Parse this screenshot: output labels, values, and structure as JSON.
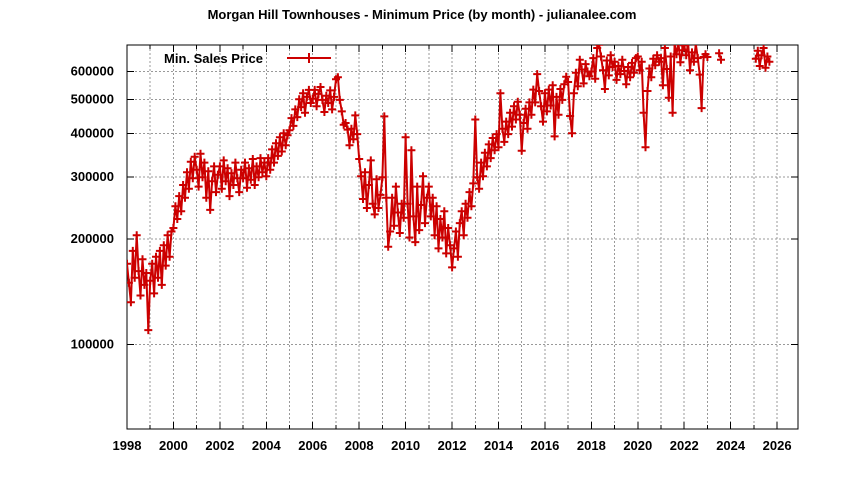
{
  "title": "Morgan Hill Townhouses - Minimum Price (by month) - julianalee.com",
  "legend": {
    "label": "Min. Sales Price"
  },
  "colors": {
    "series": "#cc0000",
    "grid": "#999999",
    "axis": "#000000",
    "background": "#ffffff",
    "text": "#000000"
  },
  "chart_data": {
    "type": "line",
    "title": "Morgan Hill Townhouses - Minimum Price (by month) - julianalee.com",
    "xlabel": "",
    "ylabel": "",
    "legend_entries": [
      "Min. Sales Price"
    ],
    "legend_position": "top-left-inside",
    "marker": "plus",
    "grid": true,
    "x_axis": {
      "min": 1998,
      "max": 2026.9,
      "tick_labels": [
        1998,
        2000,
        2002,
        2004,
        2006,
        2008,
        2010,
        2012,
        2014,
        2016,
        2018,
        2020,
        2022,
        2024,
        2026
      ],
      "minor_tick_interval": 1
    },
    "y_axis": {
      "scale": "log",
      "min": 57500,
      "max": 714000,
      "tick_labels": [
        100000,
        200000,
        300000,
        400000,
        500000,
        600000
      ]
    },
    "series": [
      {
        "name": "Min. Sales Price",
        "start_month": "1998-01",
        "frequency": "monthly",
        "monthly_values": [
          170000,
          150000,
          132000,
          185000,
          155000,
          205000,
          162000,
          138000,
          175000,
          148000,
          160000,
          110000,
          152000,
          170000,
          140000,
          178000,
          155000,
          185000,
          148000,
          192000,
          168000,
          205000,
          178000,
          210000,
          215000,
          248000,
          228000,
          265000,
          240000,
          285000,
          262000,
          310000,
          278000,
          332000,
          298000,
          343000,
          315000,
          282000,
          350000,
          300000,
          330000,
          262000,
          312000,
          242000,
          292000,
          322000,
          272000,
          305000,
          322000,
          278000,
          335000,
          292000,
          318000,
          265000,
          308000,
          285000,
          330000,
          298000,
          272000,
          315000,
          298000,
          330000,
          280000,
          318000,
          295000,
          338000,
          285000,
          322000,
          300000,
          340000,
          310000,
          330000,
          302000,
          340000,
          315000,
          360000,
          330000,
          375000,
          345000,
          390000,
          355000,
          400000,
          370000,
          395000,
          408000,
          442000,
          420000,
          468000,
          445000,
          500000,
          475000,
          520000,
          458000,
          508000,
          532000,
          488000,
          502000,
          532000,
          478000,
          518000,
          542000,
          498000,
          460000,
          512000,
          488000,
          530000,
          468000,
          508000,
          570000,
          578000,
          498000,
          462000,
          423000,
          428000,
          410000,
          370000,
          412000,
          385000,
          450000,
          398000,
          338000,
          302000,
          260000,
          310000,
          245000,
          285000,
          335000,
          252000,
          235000,
          296000,
          245000,
          267000,
          300000,
          447000,
          262000,
          190000,
          210000,
          262000,
          218000,
          282000,
          238000,
          208000,
          252000,
          230000,
          390000,
          252000,
          202000,
          358000,
          232000,
          196000,
          282000,
          212000,
          250000,
          302000,
          222000,
          262000,
          282000,
          232000,
          262000,
          205000,
          248000,
          188000,
          228000,
          202000,
          240000,
          182000,
          215000,
          192000,
          166000,
          188000,
          210000,
          178000,
          222000,
          240000,
          205000,
          252000,
          230000,
          272000,
          248000,
          288000,
          438000,
          300000,
          278000,
          330000,
          302000,
          352000,
          322000,
          372000,
          340000,
          388000,
          358000,
          398000,
          365000,
          520000,
          412000,
          378000,
          432000,
          398000,
          458000,
          418000,
          478000,
          438000,
          492000,
          452000,
          357000,
          428000,
          470000,
          412000,
          490000,
          452000,
          533000,
          490000,
          590000,
          528000,
          478000,
          432000,
          520000,
          462000,
          533000,
          480000,
          548000,
          392000,
          508000,
          452000,
          535000,
          498000,
          552000,
          580000,
          560000,
          448000,
          400000,
          520000,
          595000,
          545000,
          648000,
          608000,
          555000,
          630000,
          600000,
          582000,
          600000,
          655000,
          572000,
          700000,
          715000,
          662000,
          605000,
          535000,
          645000,
          585000,
          668000,
          618000,
          640000,
          568000,
          622000,
          590000,
          648000,
          602000,
          552000,
          618000,
          578000,
          635000,
          595000,
          655000,
          662000,
          605000,
          640000,
          458000,
          365000,
          528000,
          612000,
          578000,
          652000,
          625000,
          668000,
          640000,
          655000,
          548000,
          700000,
          610000,
          505000,
          662000,
          458000,
          718000,
          672000,
          725000,
          638000,
          690000,
          712000,
          668000,
          725000,
          605000,
          680000,
          640000,
          718000,
          655000,
          588000,
          472000,
          660000,
          672000,
          660000,
          null,
          null,
          null,
          null,
          null,
          676000,
          648000,
          null,
          null,
          null,
          null,
          null,
          null,
          null,
          null,
          null,
          null,
          null,
          null,
          null,
          null,
          null,
          null,
          null,
          652000,
          688000,
          622000,
          668000,
          700000,
          615000,
          662000,
          640000,
          null,
          null,
          null
        ]
      }
    ]
  }
}
